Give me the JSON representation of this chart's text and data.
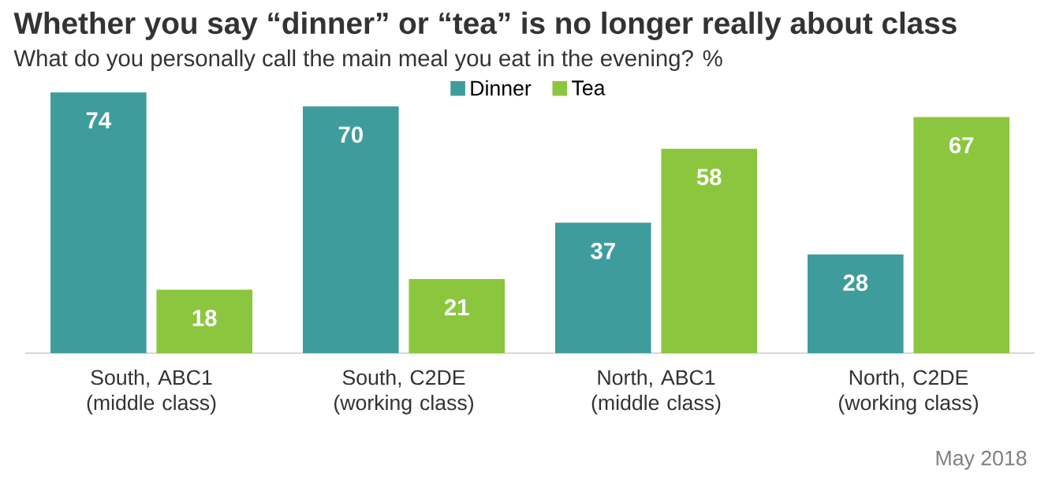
{
  "chart_data": {
    "type": "bar",
    "title": "Whether you say “dinner” or “tea” is no longer really about class",
    "subtitle": "What do you personally call the main meal you eat in the evening? %",
    "categories": [
      "South, ABC1 (middle class)",
      "South, C2DE (working class)",
      "North, ABC1 (middle class)",
      "North, C2DE (working class)"
    ],
    "series": [
      {
        "name": "Dinner",
        "color": "#3f9c9c",
        "values": [
          74,
          70,
          37,
          28
        ]
      },
      {
        "name": "Tea",
        "color": "#8cc63f",
        "values": [
          18,
          21,
          58,
          67
        ]
      }
    ],
    "data_labels": true,
    "legend": "top",
    "annotations": [
      "May 2018"
    ]
  }
}
